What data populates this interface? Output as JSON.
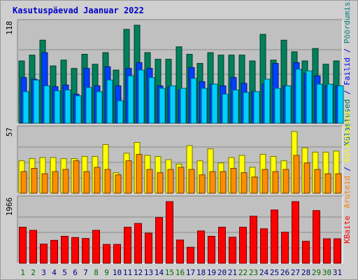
{
  "page": {
    "title": "Kasutuspäevad Jaanuar 2022"
  },
  "colors": {
    "background": "#cfcfcf",
    "panel": "#c0c0c0",
    "title": "#0000c8",
    "weekday_label": "#000080",
    "weekend_label": "#006600"
  },
  "chart_data": [
    {
      "type": "bar",
      "panel": "top",
      "max_label": "118",
      "ylim": [
        0,
        118
      ],
      "categories": [
        "1",
        "2",
        "3",
        "4",
        "5",
        "6",
        "7",
        "8",
        "9",
        "10",
        "11",
        "12",
        "13",
        "14",
        "15",
        "16",
        "17",
        "18",
        "19",
        "20",
        "21",
        "22",
        "23",
        "24",
        "25",
        "26",
        "27",
        "28",
        "29",
        "30",
        "31"
      ],
      "weekend_days": [
        1,
        2,
        8,
        9,
        15,
        16,
        22,
        23,
        29,
        30
      ],
      "right_label": [
        {
          "text": "Külastused",
          "color": "#006f4f"
        },
        {
          "text": " / ",
          "color": "#0000c8"
        },
        {
          "text": "Failid",
          "color": "#0000ff"
        },
        {
          "text": " / ",
          "color": "#0000c8"
        },
        {
          "text": "Pöördumisi",
          "color": "#008080"
        }
      ],
      "series": [
        {
          "name": "Külastused",
          "color": "#00805b",
          "values": [
            75,
            82,
            100,
            69,
            76,
            66,
            83,
            71,
            85,
            64,
            113,
            118,
            85,
            77,
            77,
            92,
            83,
            72,
            85,
            82,
            82,
            82,
            75,
            107,
            76,
            100,
            86,
            75,
            90,
            71,
            75
          ]
        },
        {
          "name": "Failid",
          "color": "#0040ff",
          "values": [
            55,
            53,
            85,
            44,
            46,
            35,
            66,
            45,
            68,
            45,
            66,
            73,
            66,
            45,
            44,
            40,
            67,
            50,
            47,
            45,
            55,
            48,
            38,
            47,
            72,
            45,
            73,
            60,
            57,
            45,
            45
          ]
        },
        {
          "name": "Pöördumisi",
          "color": "#00d0ff",
          "values": [
            38,
            52,
            45,
            39,
            40,
            33,
            43,
            38,
            52,
            27,
            57,
            64,
            55,
            42,
            45,
            42,
            54,
            42,
            47,
            35,
            40,
            37,
            38,
            53,
            42,
            45,
            65,
            63,
            47,
            47,
            45
          ]
        }
      ]
    },
    {
      "type": "bar",
      "panel": "middle",
      "max_label": "57",
      "ylim": [
        0,
        57
      ],
      "categories": [
        "1",
        "2",
        "3",
        "4",
        "5",
        "6",
        "7",
        "8",
        "9",
        "10",
        "11",
        "12",
        "13",
        "14",
        "15",
        "16",
        "17",
        "18",
        "19",
        "20",
        "21",
        "22",
        "23",
        "24",
        "25",
        "26",
        "27",
        "28",
        "29",
        "30",
        "31"
      ],
      "right_label": [
        {
          "text": "Aruteid",
          "color": "#ff8000"
        },
        {
          "text": " / ",
          "color": "#0000c8"
        },
        {
          "text": "Külastajaid",
          "color": "#ffff00"
        }
      ],
      "series": [
        {
          "name": "Külastajaid",
          "color": "#ffff00",
          "values": [
            30,
            32,
            33,
            33,
            32,
            32,
            34,
            34,
            45,
            19,
            37,
            47,
            35,
            34,
            31,
            27,
            44,
            30,
            41,
            28,
            33,
            35,
            24,
            36,
            34,
            30,
            57,
            42,
            38,
            38,
            39
          ]
        },
        {
          "name": "Aruteid",
          "color": "#ff8c00",
          "values": [
            20,
            23,
            18,
            20,
            22,
            30,
            20,
            24,
            22,
            17,
            30,
            36,
            22,
            19,
            22,
            24,
            22,
            17,
            20,
            20,
            23,
            19,
            15,
            22,
            20,
            22,
            35,
            28,
            22,
            18,
            18
          ]
        }
      ]
    },
    {
      "type": "bar",
      "panel": "bottom",
      "max_label": "1966",
      "ylim": [
        0,
        1966
      ],
      "categories": [
        "1",
        "2",
        "3",
        "4",
        "5",
        "6",
        "7",
        "8",
        "9",
        "10",
        "11",
        "12",
        "13",
        "14",
        "15",
        "16",
        "17",
        "18",
        "19",
        "20",
        "21",
        "22",
        "23",
        "24",
        "25",
        "26",
        "27",
        "28",
        "29",
        "30",
        "31"
      ],
      "right_label": [
        {
          "text": "KBaite",
          "color": "#ff0000"
        }
      ],
      "series": [
        {
          "name": "KBaite",
          "color": "#ff0000",
          "values": [
            1150,
            1050,
            610,
            730,
            860,
            820,
            790,
            1050,
            600,
            600,
            1150,
            1270,
            960,
            1460,
            1966,
            740,
            510,
            1030,
            860,
            1150,
            830,
            1150,
            1500,
            1100,
            1700,
            990,
            1966,
            700,
            1680,
            780,
            780
          ]
        }
      ]
    }
  ]
}
